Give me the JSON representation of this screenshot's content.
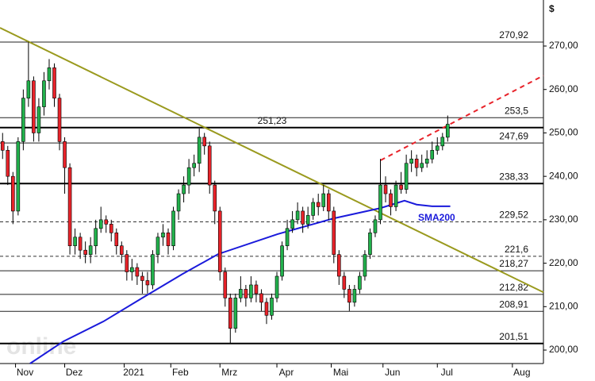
{
  "chart_data": {
    "type": "candlestick",
    "unit": "$",
    "watermark": "online",
    "xlim": [
      0,
      210
    ],
    "ylim": [
      196.9,
      280.6
    ],
    "xticks": [
      {
        "value": 6,
        "label": "Nov"
      },
      {
        "value": 25,
        "label": "Dez"
      },
      {
        "value": 48,
        "label": "2021"
      },
      {
        "value": 66,
        "label": "Feb"
      },
      {
        "value": 85,
        "label": "Mrz"
      },
      {
        "value": 107,
        "label": "Apr"
      },
      {
        "value": 128,
        "label": "Mai"
      },
      {
        "value": 148,
        "label": "Jun"
      },
      {
        "value": 169,
        "label": "Jul"
      },
      {
        "value": 198,
        "label": "Aug"
      }
    ],
    "yticks": [
      {
        "value": 200,
        "label": "200,00"
      },
      {
        "value": 210,
        "label": "210,00"
      },
      {
        "value": 220,
        "label": "220,00"
      },
      {
        "value": 230,
        "label": "230,00"
      },
      {
        "value": 240,
        "label": "240,00"
      },
      {
        "value": 250,
        "label": "250,00"
      },
      {
        "value": 260,
        "label": "260,00"
      },
      {
        "value": 270,
        "label": "270,00"
      }
    ],
    "levels": [
      {
        "value": 270.92,
        "label": "270,92",
        "style": "thin"
      },
      {
        "value": 253.5,
        "label": "253,5",
        "style": "thin"
      },
      {
        "value": 251.23,
        "label": "251,23",
        "style": "thick"
      },
      {
        "value": 247.69,
        "label": "247,69",
        "style": "thin"
      },
      {
        "value": 238.33,
        "label": "238,33",
        "style": "thick"
      },
      {
        "value": 229.52,
        "label": "229,52",
        "style": "dashed"
      },
      {
        "value": 221.6,
        "label": "221,6",
        "style": "dashed"
      },
      {
        "value": 218.27,
        "label": "218,27",
        "style": "thin"
      },
      {
        "value": 212.82,
        "label": "212,82",
        "style": "thin"
      },
      {
        "value": 208.91,
        "label": "208,91",
        "style": "thin"
      },
      {
        "value": 201.51,
        "label": "201,51",
        "style": "thick"
      }
    ],
    "candles": {
      "up_color": "#22b14c",
      "down_color": "#e8232a",
      "x": [
        1,
        3,
        5,
        7,
        9,
        11,
        13,
        15,
        17,
        19,
        21,
        23,
        25,
        27,
        29,
        31,
        33,
        35,
        37,
        39,
        41,
        43,
        45,
        47,
        49,
        51,
        53,
        55,
        57,
        59,
        61,
        63,
        65,
        67,
        69,
        71,
        73,
        75,
        77,
        79,
        81,
        83,
        85,
        87,
        89,
        91,
        93,
        95,
        97,
        99,
        101,
        103,
        105,
        107,
        109,
        111,
        113,
        115,
        117,
        119,
        121,
        123,
        125,
        127,
        129,
        131,
        133,
        135,
        137,
        139,
        141,
        143,
        145,
        147,
        149,
        151,
        153,
        155,
        157,
        159,
        161,
        163,
        165,
        167,
        169,
        171,
        173
      ],
      "open": [
        248,
        246,
        240,
        232,
        248,
        258,
        262,
        250,
        256,
        262,
        265,
        258,
        248,
        242,
        224,
        226,
        223,
        222,
        224,
        228,
        230,
        229,
        227,
        224,
        222,
        218,
        219,
        217,
        216,
        215,
        222,
        226,
        227,
        224,
        232,
        236,
        238,
        242,
        243,
        249,
        247,
        238,
        232,
        218,
        212,
        205,
        212,
        214,
        212,
        215,
        213,
        211,
        208,
        212,
        217,
        224,
        228,
        230,
        232,
        229,
        231,
        234,
        233,
        236,
        232,
        222,
        217,
        214,
        211,
        214,
        217,
        222,
        227,
        230,
        238,
        236,
        233,
        238,
        237,
        243,
        244,
        242,
        243,
        244,
        246,
        247,
        249
      ],
      "high": [
        250,
        247,
        241,
        249,
        260,
        271,
        263,
        258,
        264,
        267,
        266,
        259,
        249,
        243,
        228,
        227,
        225,
        226,
        230,
        233,
        231,
        230,
        228,
        225,
        223,
        221,
        220,
        218,
        218,
        223,
        227,
        229,
        228,
        233,
        237,
        240,
        244,
        245,
        251,
        250,
        248,
        239,
        233,
        219,
        213,
        213,
        217,
        215,
        217,
        216,
        214,
        212,
        213,
        218,
        225,
        230,
        232,
        234,
        233,
        233,
        235,
        236,
        238,
        237,
        233,
        223,
        218,
        215,
        215,
        218,
        223,
        228,
        231,
        244,
        240,
        237,
        239,
        241,
        245,
        246,
        245,
        245,
        246,
        248,
        249,
        250,
        254
      ],
      "low": [
        244,
        238,
        229,
        231,
        246,
        256,
        248,
        248,
        254,
        260,
        256,
        246,
        236,
        222,
        222,
        221,
        220,
        220,
        222,
        227,
        227,
        225,
        222,
        220,
        216,
        216,
        215,
        213,
        213,
        214,
        220,
        224,
        222,
        223,
        230,
        234,
        236,
        240,
        241,
        245,
        236,
        229,
        216,
        210,
        201.5,
        204,
        211,
        210,
        211,
        211,
        209,
        206,
        207,
        211,
        216,
        223,
        227,
        229,
        227,
        228,
        230,
        231,
        232,
        230,
        220,
        215,
        212,
        209,
        210,
        213,
        216,
        221,
        226,
        229,
        234,
        231,
        232,
        236,
        236,
        241,
        240,
        241,
        242,
        243,
        245,
        246,
        248
      ],
      "close": [
        246,
        240,
        232,
        248,
        258,
        262,
        250,
        256,
        262,
        265,
        258,
        248,
        242,
        224,
        226,
        223,
        222,
        224,
        228,
        230,
        229,
        227,
        224,
        222,
        218,
        219,
        217,
        216,
        215,
        222,
        226,
        227,
        224,
        232,
        236,
        238,
        242,
        243,
        249,
        247,
        238,
        232,
        218,
        212,
        205,
        212,
        214,
        212,
        215,
        213,
        211,
        208,
        212,
        217,
        224,
        228,
        230,
        232,
        229,
        231,
        234,
        233,
        236,
        232,
        222,
        217,
        214,
        211,
        214,
        217,
        222,
        227,
        230,
        238,
        236,
        233,
        238,
        237,
        243,
        244,
        242,
        243,
        244,
        246,
        247,
        249,
        252
      ]
    },
    "lines": [
      {
        "color": "#9a9a1e",
        "style": "solid",
        "x": [
          0,
          210
        ],
        "values": [
          274.2,
          213.3
        ]
      },
      {
        "name": "SMA200",
        "color": "#1a1adb",
        "style": "solid",
        "x": [
          11.6,
          24.5,
          40,
          55,
          70.5,
          84.3,
          107.3,
          128.8,
          147.1,
          156.3,
          161,
          167,
          174
        ],
        "values": [
          196.9,
          202,
          206.6,
          212,
          217.5,
          222.1,
          226.7,
          230.3,
          232.7,
          234.4,
          233.5,
          233.1,
          233.1
        ]
      },
      {
        "color": "#e8232a",
        "style": "dashed",
        "x": [
          147.1,
          210
        ],
        "values": [
          243.7,
          263.2
        ]
      }
    ]
  }
}
